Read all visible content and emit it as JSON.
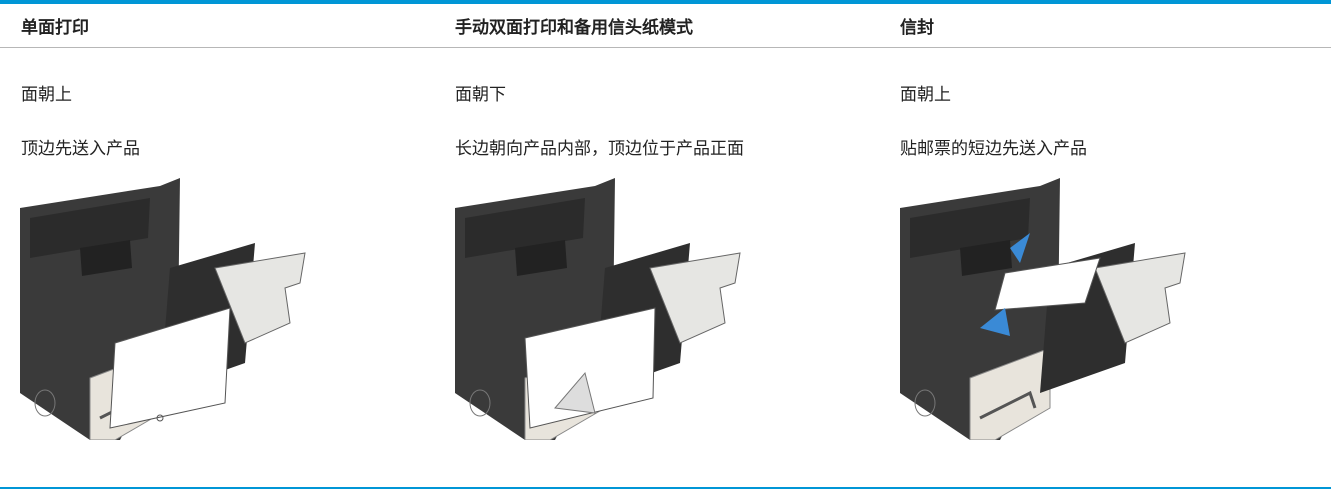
{
  "table": {
    "header": [
      "单面打印",
      "手动双面打印和备用信头纸模式",
      "信封"
    ],
    "rows": [
      [
        "面朝上",
        "面朝下",
        "面朝上"
      ],
      [
        "顶边先送入产品",
        "长边朝向产品内部，顶边位于产品正面",
        "贴邮票的短边先送入产品"
      ]
    ]
  }
}
